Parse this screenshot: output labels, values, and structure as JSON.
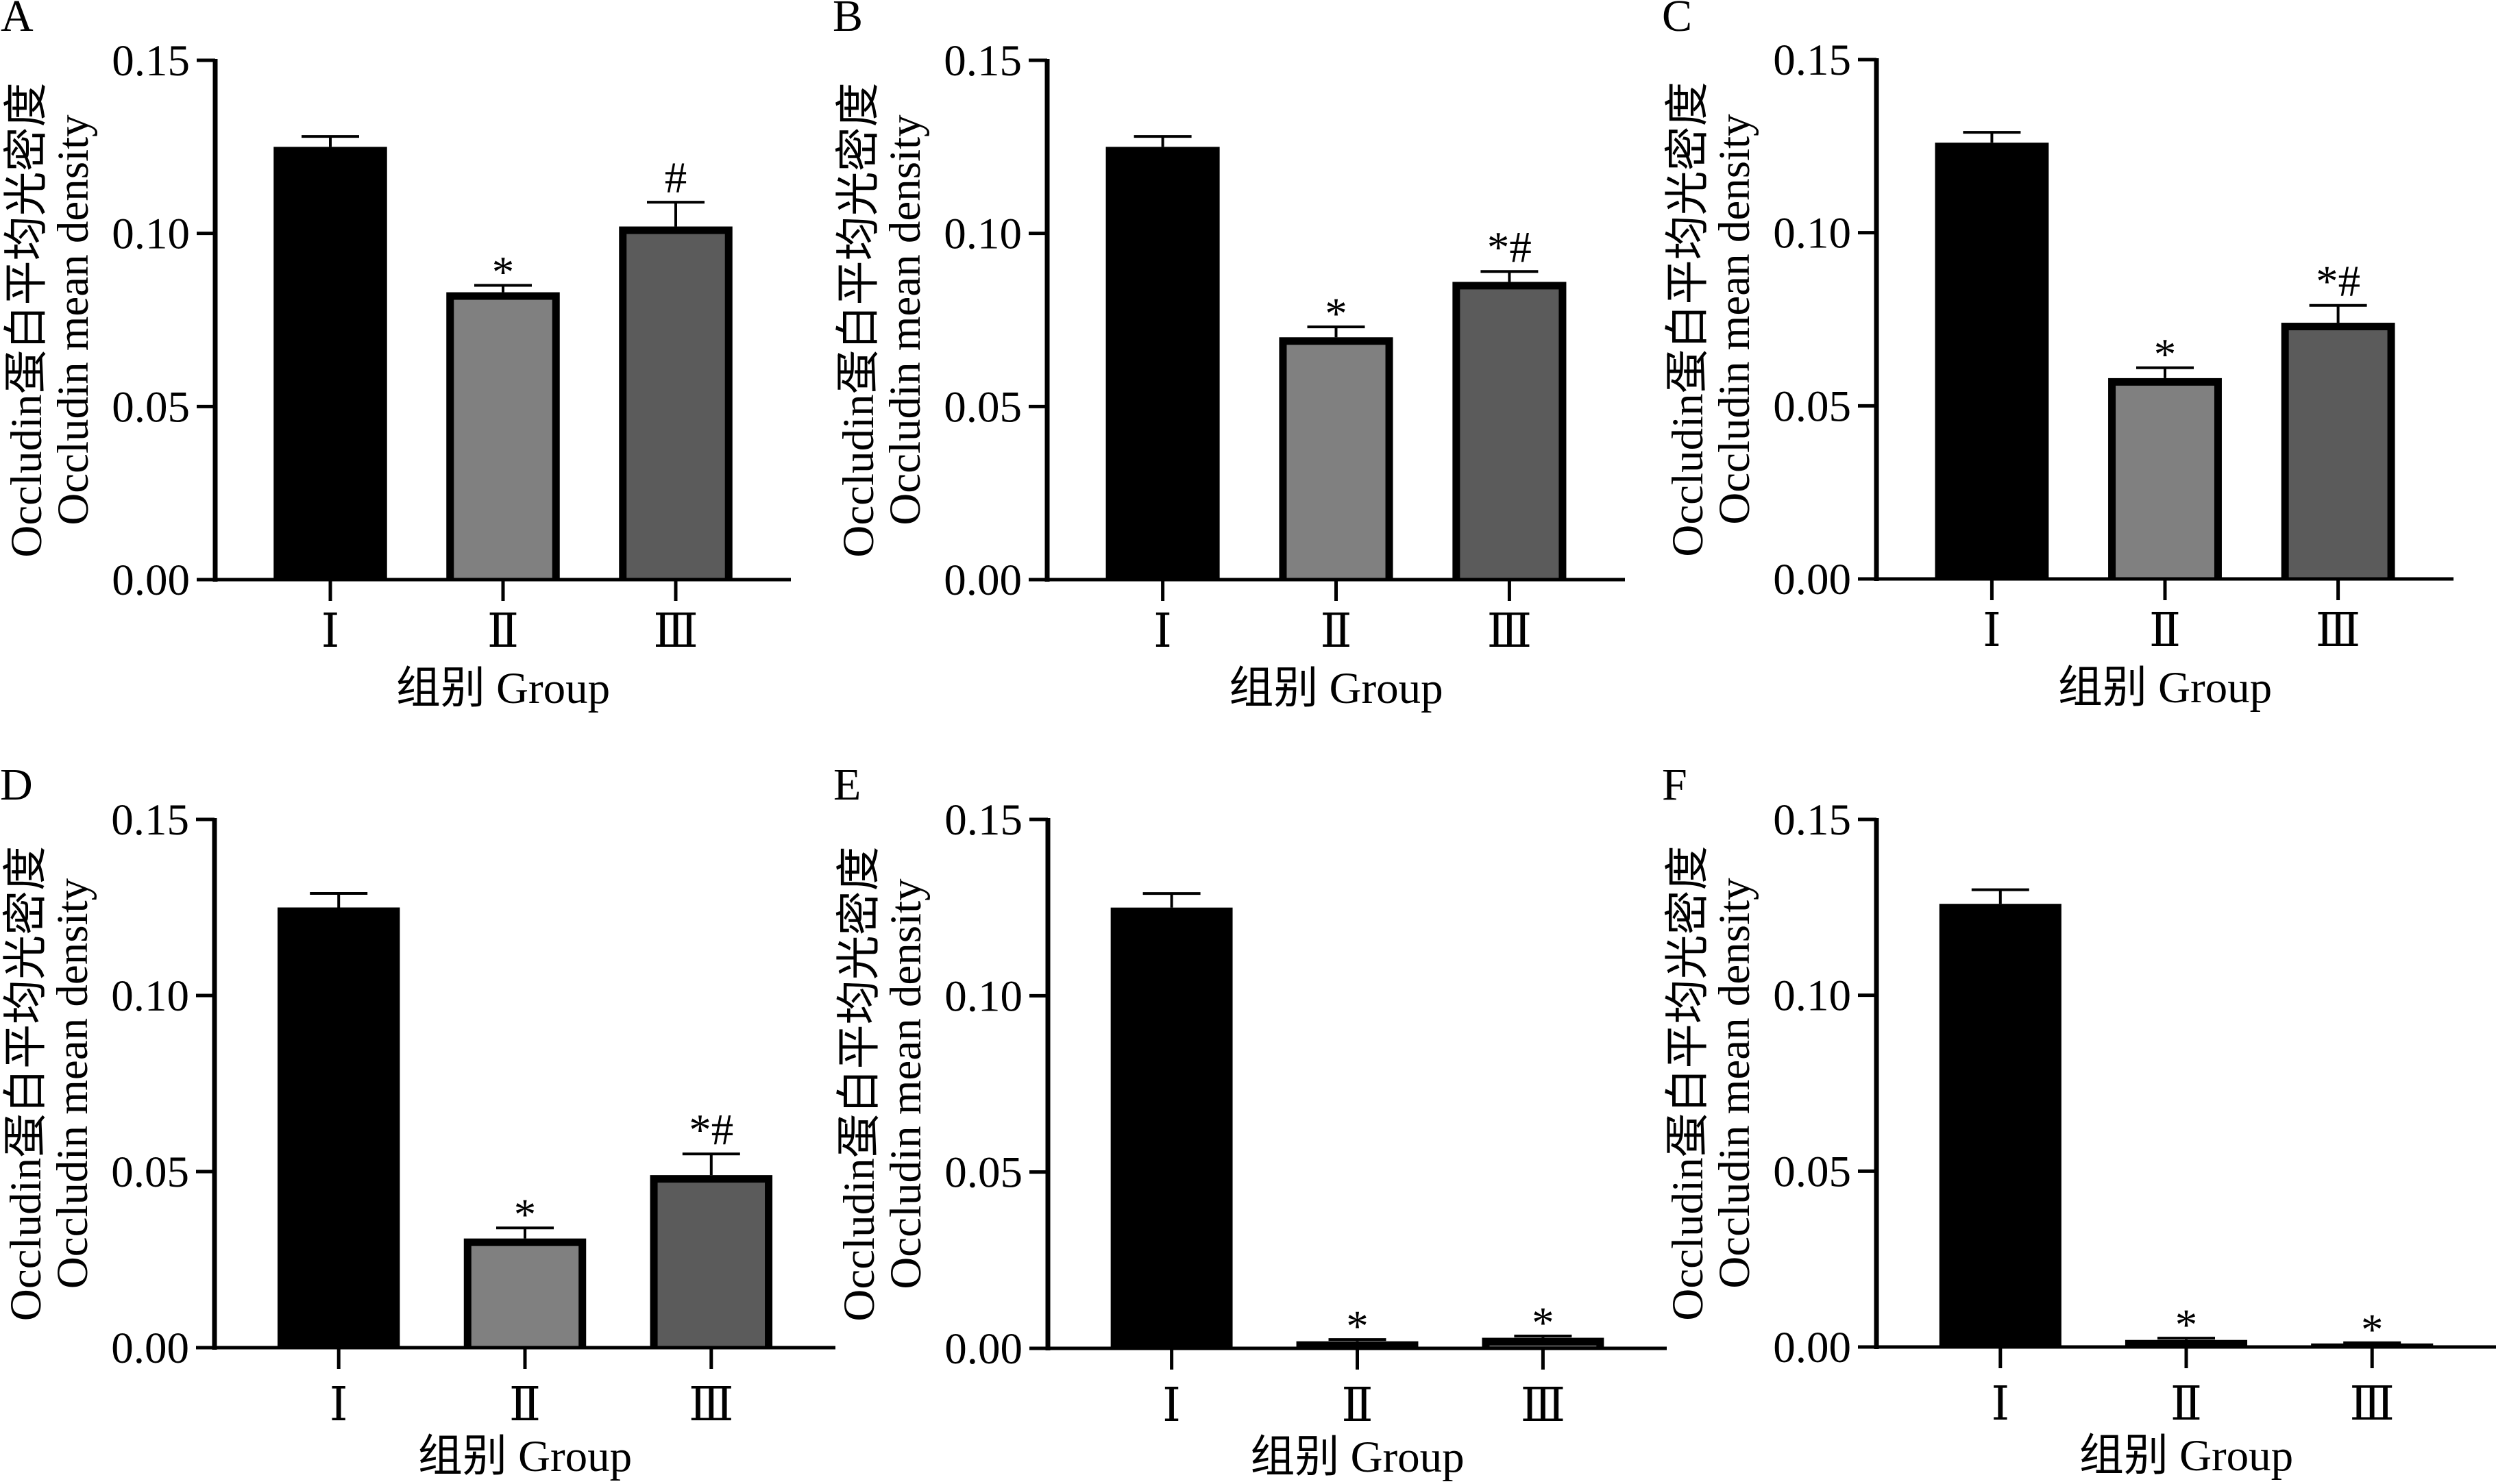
{
  "chart_data": [
    {
      "panel": "A",
      "type": "bar",
      "title": "",
      "categories": [
        "Ⅰ",
        "Ⅱ",
        "Ⅲ"
      ],
      "values": [
        0.125,
        0.083,
        0.102
      ],
      "errors": [
        0.003,
        0.002,
        0.007
      ],
      "annotations": [
        "",
        "*",
        "#"
      ],
      "bar_colors": [
        "#000000",
        "#808080",
        "#5b5b5b"
      ],
      "edge_color": "#000000",
      "xlabel": "组别 Group",
      "ylabel": [
        "Occludin蛋白平均光密度",
        "Occludin mean density"
      ],
      "ylim": [
        0,
        0.15
      ],
      "yticks": [
        0,
        0.05,
        0.1,
        0.15
      ],
      "ytick_labels": [
        "0.00",
        "0.05",
        "0.10",
        "0.15"
      ],
      "grid": false,
      "legend": "none"
    },
    {
      "panel": "B",
      "type": "bar",
      "title": "",
      "categories": [
        "Ⅰ",
        "Ⅱ",
        "Ⅲ"
      ],
      "values": [
        0.125,
        0.07,
        0.086
      ],
      "errors": [
        0.003,
        0.003,
        0.003
      ],
      "annotations": [
        "",
        "*",
        "*#"
      ],
      "bar_colors": [
        "#000000",
        "#808080",
        "#5b5b5b"
      ],
      "edge_color": "#000000",
      "xlabel": "组别 Group",
      "ylabel": [
        "Occludin蛋白平均光密度",
        "Occludin mean density"
      ],
      "ylim": [
        0,
        0.15
      ],
      "yticks": [
        0,
        0.05,
        0.1,
        0.15
      ],
      "ytick_labels": [
        "0.00",
        "0.05",
        "0.10",
        "0.15"
      ],
      "grid": false,
      "legend": "none"
    },
    {
      "panel": "C",
      "type": "bar",
      "title": "",
      "categories": [
        "Ⅰ",
        "Ⅱ",
        "Ⅲ"
      ],
      "values": [
        0.126,
        0.058,
        0.074
      ],
      "errors": [
        0.003,
        0.003,
        0.005
      ],
      "annotations": [
        "",
        "*",
        "*#"
      ],
      "bar_colors": [
        "#000000",
        "#808080",
        "#5b5b5b"
      ],
      "edge_color": "#000000",
      "xlabel": "组别 Group",
      "ylabel": [
        "Occludin蛋白平均光密度",
        "Occludin mean density"
      ],
      "ylim": [
        0,
        0.15
      ],
      "yticks": [
        0,
        0.05,
        0.1,
        0.15
      ],
      "ytick_labels": [
        "0.00",
        "0.05",
        "0.10",
        "0.15"
      ],
      "grid": false,
      "legend": "none"
    },
    {
      "panel": "D",
      "type": "bar",
      "title": "",
      "categories": [
        "Ⅰ",
        "Ⅱ",
        "Ⅲ"
      ],
      "values": [
        0.125,
        0.031,
        0.049
      ],
      "errors": [
        0.004,
        0.003,
        0.006
      ],
      "annotations": [
        "",
        "*",
        "*#"
      ],
      "bar_colors": [
        "#000000",
        "#808080",
        "#5b5b5b"
      ],
      "edge_color": "#000000",
      "xlabel": "组别 Group",
      "ylabel": [
        "Occludin蛋白平均光密度",
        "Occludin mean density"
      ],
      "ylim": [
        0,
        0.15
      ],
      "yticks": [
        0,
        0.05,
        0.1,
        0.15
      ],
      "ytick_labels": [
        "0.00",
        "0.05",
        "0.10",
        "0.15"
      ],
      "grid": false,
      "legend": "none"
    },
    {
      "panel": "E",
      "type": "bar",
      "title": "",
      "categories": [
        "Ⅰ",
        "Ⅱ",
        "Ⅲ"
      ],
      "values": [
        0.125,
        0.002,
        0.003
      ],
      "errors": [
        0.004,
        0.0005,
        0.0005
      ],
      "annotations": [
        "",
        "*",
        "*"
      ],
      "bar_colors": [
        "#000000",
        "#808080",
        "#5b5b5b"
      ],
      "edge_color": "#000000",
      "xlabel": "组别 Group",
      "ylabel": [
        "Occludin蛋白平均光密度",
        "Occludin mean density"
      ],
      "ylim": [
        0,
        0.15
      ],
      "yticks": [
        0,
        0.05,
        0.1,
        0.15
      ],
      "ytick_labels": [
        "0.00",
        "0.05",
        "0.10",
        "0.15"
      ],
      "grid": false,
      "legend": "none"
    },
    {
      "panel": "F",
      "type": "bar",
      "title": "",
      "categories": [
        "Ⅰ",
        "Ⅱ",
        "Ⅲ"
      ],
      "values": [
        0.126,
        0.002,
        0.001
      ],
      "errors": [
        0.004,
        0.0005,
        0.0002
      ],
      "annotations": [
        "",
        "*",
        "*"
      ],
      "bar_colors": [
        "#000000",
        "#808080",
        "#5b5b5b"
      ],
      "edge_color": "#000000",
      "xlabel": "组别 Group",
      "ylabel": [
        "Occludin蛋白平均光密度",
        "Occludin mean density"
      ],
      "ylim": [
        0,
        0.15
      ],
      "yticks": [
        0,
        0.05,
        0.1,
        0.15
      ],
      "ytick_labels": [
        "0.00",
        "0.05",
        "0.10",
        "0.15"
      ],
      "grid": false,
      "legend": "none"
    }
  ]
}
